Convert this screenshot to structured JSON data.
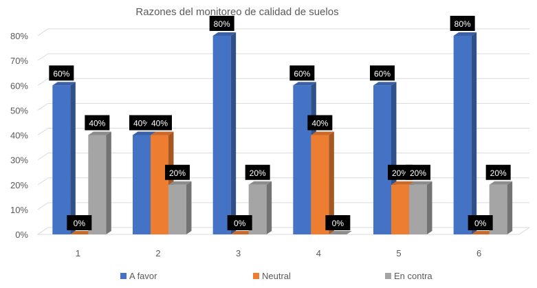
{
  "chart_data": {
    "type": "bar",
    "title": "Razones del monitoreo de calidad de suelos",
    "xlabel": "",
    "ylabel": "",
    "categories": [
      "1",
      "2",
      "3",
      "4",
      "5",
      "6"
    ],
    "ylim": [
      0,
      80
    ],
    "yticks": [
      "0%",
      "10%",
      "20%",
      "30%",
      "40%",
      "50%",
      "60%",
      "70%",
      "80%"
    ],
    "series": [
      {
        "name": "A favor",
        "color": "#4472C4",
        "values": [
          60,
          40,
          80,
          60,
          60,
          80
        ],
        "labels": [
          "60%",
          "40%",
          "80%",
          "60%",
          "60%",
          "80%"
        ]
      },
      {
        "name": "Neutral",
        "color": "#ED7D31",
        "values": [
          0,
          40,
          0,
          40,
          20,
          0
        ],
        "labels": [
          "0%",
          "40%",
          "0%",
          "40%",
          "20%",
          "0%"
        ]
      },
      {
        "name": "En contra",
        "color": "#A5A5A5",
        "values": [
          40,
          20,
          20,
          0,
          20,
          20
        ],
        "labels": [
          "40%",
          "20%",
          "20%",
          "0%",
          "20%",
          "20%"
        ]
      }
    ],
    "grid": true,
    "legend": "bottom",
    "style": "3d-columns"
  }
}
